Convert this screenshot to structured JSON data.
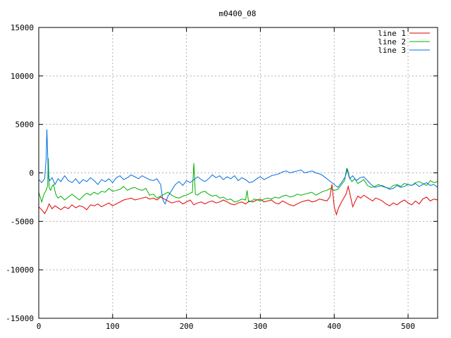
{
  "chart_data": {
    "type": "line",
    "title": "m0400_08",
    "xlabel": "",
    "ylabel": "",
    "xlim": [
      0,
      540
    ],
    "ylim": [
      -15000,
      15000
    ],
    "x_ticks": [
      0,
      100,
      200,
      300,
      400,
      500
    ],
    "y_ticks": [
      -15000,
      -10000,
      -5000,
      0,
      5000,
      10000,
      15000
    ],
    "grid": true,
    "legend_position": "top-right",
    "series": [
      {
        "name": "line 1",
        "color": "#e00000",
        "x": [
          0,
          5,
          8,
          11,
          14,
          18,
          22,
          26,
          30,
          35,
          40,
          45,
          50,
          55,
          60,
          65,
          70,
          75,
          80,
          85,
          90,
          95,
          100,
          105,
          110,
          115,
          120,
          125,
          130,
          135,
          140,
          145,
          150,
          155,
          160,
          165,
          170,
          175,
          180,
          185,
          190,
          195,
          200,
          205,
          210,
          215,
          220,
          225,
          230,
          235,
          240,
          245,
          250,
          255,
          260,
          265,
          270,
          275,
          280,
          285,
          290,
          295,
          300,
          305,
          310,
          315,
          320,
          325,
          330,
          335,
          340,
          345,
          350,
          355,
          360,
          365,
          370,
          375,
          380,
          385,
          390,
          394,
          397,
          400,
          403,
          406,
          410,
          413,
          416,
          419,
          422,
          425,
          428,
          432,
          436,
          440,
          444,
          448,
          452,
          456,
          460,
          465,
          470,
          475,
          480,
          485,
          490,
          495,
          500,
          505,
          510,
          515,
          520,
          525,
          530,
          535,
          540
        ],
        "y": [
          -3500,
          -3900,
          -4200,
          -3800,
          -3200,
          -3700,
          -3400,
          -3600,
          -3800,
          -3500,
          -3700,
          -3300,
          -3600,
          -3400,
          -3500,
          -3800,
          -3300,
          -3400,
          -3200,
          -3500,
          -3300,
          -3100,
          -3400,
          -3200,
          -3000,
          -2800,
          -2700,
          -2600,
          -2800,
          -2700,
          -2600,
          -2500,
          -2700,
          -2600,
          -2800,
          -2500,
          -2700,
          -2900,
          -3100,
          -3000,
          -2900,
          -3200,
          -3000,
          -2800,
          -3300,
          -3100,
          -3000,
          -3200,
          -3000,
          -2900,
          -3100,
          -3000,
          -2800,
          -3000,
          -3200,
          -3300,
          -3100,
          -3000,
          -3200,
          -2900,
          -3000,
          -2800,
          -2700,
          -3000,
          -2900,
          -2800,
          -3100,
          -3200,
          -2900,
          -3100,
          -3300,
          -3400,
          -3200,
          -3000,
          -2900,
          -2800,
          -3000,
          -2900,
          -2700,
          -2800,
          -2900,
          -2500,
          -1200,
          -3500,
          -4300,
          -3600,
          -3000,
          -2600,
          -2200,
          -1400,
          -2400,
          -3500,
          -3000,
          -2400,
          -2600,
          -2300,
          -2500,
          -2700,
          -2900,
          -2600,
          -2700,
          -2900,
          -3200,
          -3400,
          -3100,
          -3300,
          -3000,
          -2800,
          -3100,
          -3300,
          -2900,
          -3200,
          -2700,
          -2500,
          -2900,
          -2700,
          -2800
        ]
      },
      {
        "name": "line 2",
        "color": "#00b000",
        "x": [
          0,
          4,
          7,
          10,
          12,
          13,
          14,
          16,
          18,
          20,
          23,
          26,
          30,
          35,
          40,
          45,
          50,
          55,
          60,
          65,
          70,
          75,
          80,
          85,
          90,
          95,
          100,
          105,
          110,
          115,
          120,
          125,
          130,
          135,
          140,
          145,
          150,
          155,
          160,
          165,
          170,
          175,
          180,
          185,
          190,
          195,
          200,
          205,
          208,
          210,
          212,
          215,
          220,
          225,
          230,
          235,
          240,
          245,
          250,
          255,
          260,
          265,
          270,
          275,
          280,
          282,
          284,
          288,
          292,
          296,
          300,
          305,
          310,
          315,
          320,
          325,
          330,
          335,
          340,
          345,
          350,
          355,
          360,
          365,
          370,
          375,
          380,
          385,
          390,
          395,
          400,
          405,
          410,
          414,
          417,
          420,
          424,
          428,
          432,
          436,
          440,
          445,
          450,
          455,
          460,
          465,
          470,
          475,
          480,
          485,
          490,
          495,
          500,
          505,
          510,
          515,
          520,
          525,
          530,
          535,
          540
        ],
        "y": [
          -2000,
          -3000,
          -2200,
          -1800,
          -1300,
          1500,
          -1500,
          -1800,
          -1400,
          -1200,
          -2200,
          -2600,
          -2400,
          -2800,
          -2500,
          -2200,
          -2500,
          -2800,
          -2400,
          -2100,
          -2300,
          -2000,
          -2200,
          -1900,
          -2000,
          -1600,
          -1900,
          -1800,
          -1700,
          -1400,
          -1800,
          -1600,
          -1500,
          -1700,
          -1800,
          -1600,
          -2300,
          -2200,
          -2600,
          -2400,
          -2200,
          -2000,
          -2300,
          -2500,
          -2600,
          -2400,
          -2300,
          -2100,
          -2000,
          1000,
          -2200,
          -2300,
          -2000,
          -1900,
          -2200,
          -2400,
          -2300,
          -2600,
          -2500,
          -2800,
          -2700,
          -3000,
          -2900,
          -2700,
          -2800,
          -1800,
          -3000,
          -2900,
          -2700,
          -2800,
          -2900,
          -2700,
          -2600,
          -2700,
          -2500,
          -2600,
          -2400,
          -2300,
          -2500,
          -2400,
          -2200,
          -2300,
          -2200,
          -2100,
          -2000,
          -2300,
          -2100,
          -1900,
          -1800,
          -1600,
          -1800,
          -1700,
          -1200,
          -800,
          500,
          -400,
          -900,
          -600,
          -1100,
          -900,
          -700,
          -1300,
          -1500,
          -1400,
          -1200,
          -1400,
          -1500,
          -1600,
          -1300,
          -1200,
          -1400,
          -1100,
          -1200,
          -1300,
          -1000,
          -900,
          -1100,
          -1300,
          -800,
          -1000,
          -900
        ]
      },
      {
        "name": "line 3",
        "color": "#0070e0",
        "x": [
          0,
          4,
          8,
          10,
          11,
          12,
          13,
          15,
          18,
          22,
          26,
          30,
          35,
          40,
          45,
          50,
          55,
          60,
          65,
          70,
          75,
          80,
          85,
          90,
          95,
          100,
          105,
          110,
          115,
          120,
          125,
          130,
          135,
          140,
          145,
          150,
          155,
          160,
          165,
          168,
          171,
          175,
          180,
          185,
          190,
          195,
          200,
          205,
          210,
          215,
          220,
          225,
          230,
          235,
          240,
          245,
          250,
          255,
          260,
          265,
          270,
          275,
          280,
          285,
          290,
          295,
          300,
          305,
          310,
          315,
          320,
          325,
          330,
          335,
          340,
          345,
          350,
          355,
          360,
          365,
          370,
          375,
          380,
          385,
          390,
          395,
          400,
          405,
          410,
          415,
          418,
          421,
          425,
          430,
          435,
          440,
          445,
          450,
          455,
          460,
          465,
          470,
          475,
          480,
          485,
          490,
          495,
          500,
          505,
          510,
          515,
          520,
          525,
          530,
          535,
          540
        ],
        "y": [
          -700,
          -1000,
          -600,
          1500,
          4500,
          2000,
          -400,
          -800,
          -500,
          -1200,
          -600,
          -900,
          -300,
          -800,
          -1000,
          -600,
          -1100,
          -700,
          -900,
          -500,
          -800,
          -1200,
          -700,
          -900,
          -600,
          -1000,
          -500,
          -300,
          -700,
          -500,
          -200,
          -400,
          -600,
          -300,
          -500,
          -700,
          -800,
          -600,
          -1200,
          -2800,
          -3200,
          -2400,
          -1800,
          -1200,
          -900,
          -1300,
          -800,
          -1000,
          -700,
          -400,
          -700,
          -900,
          -600,
          -200,
          -500,
          -300,
          -700,
          -400,
          -600,
          -300,
          -800,
          -500,
          -700,
          -1000,
          -900,
          -600,
          -400,
          -700,
          -500,
          -300,
          -200,
          -100,
          100,
          200,
          0,
          100,
          200,
          300,
          0,
          100,
          200,
          0,
          -100,
          -300,
          -600,
          -900,
          -1200,
          -1500,
          -1000,
          -400,
          400,
          -600,
          -300,
          -800,
          -500,
          -400,
          -800,
          -1200,
          -1500,
          -1400,
          -1300,
          -1500,
          -1700,
          -1600,
          -1300,
          -1500,
          -1400,
          -1200,
          -1300,
          -1100,
          -1400,
          -1200,
          -1000,
          -1300,
          -1200,
          -1500
        ]
      }
    ]
  }
}
